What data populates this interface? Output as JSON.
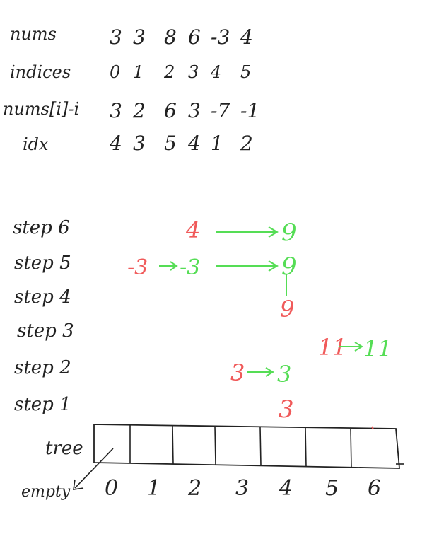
{
  "colors": {
    "ink": "#222222",
    "red": "#f05a5a",
    "green": "#55dd55"
  },
  "table": {
    "rows": [
      {
        "label": "nums",
        "values": [
          "3",
          "3",
          "8",
          "6",
          "-3",
          "4"
        ]
      },
      {
        "label": "indices",
        "values": [
          "0",
          "1",
          "2",
          "3",
          "4",
          "5"
        ]
      },
      {
        "label": "nums[i]-i",
        "values": [
          "3",
          "2",
          "6",
          "3",
          "-7",
          "-1"
        ]
      },
      {
        "label": "idx",
        "values": [
          "4",
          "3",
          "5",
          "4",
          "1",
          "2"
        ]
      }
    ]
  },
  "steps": [
    {
      "label": "step 6",
      "items": [
        {
          "text": "4",
          "color": "red"
        },
        {
          "text": "→",
          "color": "green"
        },
        {
          "text": "9",
          "color": "green"
        }
      ]
    },
    {
      "label": "step 5",
      "items": [
        {
          "text": "-3",
          "color": "red"
        },
        {
          "text": "→",
          "color": "green"
        },
        {
          "text": "-3",
          "color": "green"
        },
        {
          "text": "→",
          "color": "green"
        },
        {
          "text": "9",
          "color": "green"
        }
      ]
    },
    {
      "label": "step 4",
      "items": [
        {
          "text": "9",
          "color": "red"
        }
      ]
    },
    {
      "label": "step 3",
      "items": [
        {
          "text": "11",
          "color": "red"
        },
        {
          "text": "→",
          "color": "green"
        },
        {
          "text": "11",
          "color": "green"
        }
      ]
    },
    {
      "label": "step 2",
      "items": [
        {
          "text": "3",
          "color": "red"
        },
        {
          "text": "→",
          "color": "green"
        },
        {
          "text": "3",
          "color": "green"
        }
      ]
    },
    {
      "label": "step 1",
      "items": [
        {
          "text": "3",
          "color": "red"
        }
      ]
    }
  ],
  "tree": {
    "label": "tree",
    "empty_label": "empty",
    "indices": [
      "0",
      "1",
      "2",
      "3",
      "4",
      "5",
      "6"
    ]
  }
}
